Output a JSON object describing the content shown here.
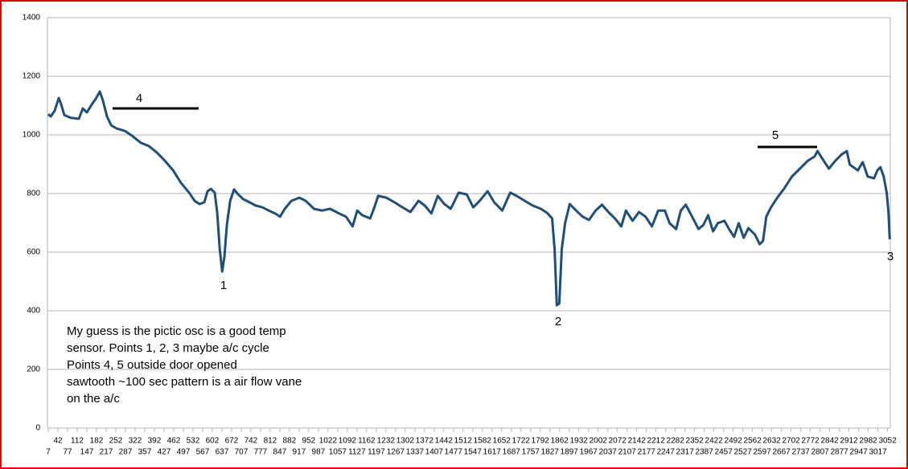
{
  "chart_data": {
    "type": "line",
    "color": "#1f4e79",
    "grid": true,
    "ylim": [
      0,
      1400
    ],
    "yticks": [
      0,
      200,
      400,
      600,
      800,
      1000,
      1200,
      1400
    ],
    "xlim": [
      4,
      3062
    ],
    "xticks": [
      7,
      42,
      77,
      112,
      147,
      182,
      217,
      252,
      287,
      322,
      357,
      392,
      427,
      462,
      497,
      532,
      567,
      602,
      637,
      672,
      707,
      742,
      777,
      812,
      847,
      882,
      917,
      952,
      987,
      1022,
      1057,
      1092,
      1127,
      1162,
      1197,
      1232,
      1267,
      1302,
      1337,
      1372,
      1407,
      1442,
      1477,
      1512,
      1547,
      1582,
      1617,
      1652,
      1687,
      1722,
      1757,
      1792,
      1827,
      1862,
      1897,
      1932,
      1967,
      2002,
      2037,
      2072,
      2107,
      2142,
      2177,
      2212,
      2247,
      2282,
      2317,
      2352,
      2387,
      2422,
      2457,
      2492,
      2527,
      2562,
      2597,
      2632,
      2667,
      2702,
      2737,
      2772,
      2807,
      2842,
      2877,
      2912,
      2947,
      2982,
      3017,
      3052
    ],
    "x": [
      7,
      16,
      30,
      45,
      54,
      65,
      89,
      118,
      132,
      147,
      165,
      179,
      194,
      205,
      220,
      235,
      255,
      284,
      314,
      343,
      372,
      401,
      430,
      460,
      489,
      518,
      538,
      556,
      573,
      585,
      597,
      611,
      620,
      629,
      638,
      646,
      655,
      667,
      681,
      696,
      714,
      737,
      760,
      784,
      807,
      830,
      848,
      865,
      889,
      918,
      941,
      971,
      1000,
      1029,
      1058,
      1087,
      1111,
      1128,
      1146,
      1175,
      1190,
      1204,
      1233,
      1263,
      1292,
      1321,
      1350,
      1373,
      1397,
      1420,
      1444,
      1467,
      1496,
      1525,
      1549,
      1572,
      1601,
      1625,
      1654,
      1683,
      1706,
      1736,
      1765,
      1794,
      1817,
      1835,
      1844,
      1852,
      1861,
      1870,
      1882,
      1899,
      1922,
      1946,
      1969,
      1993,
      2016,
      2039,
      2063,
      2086,
      2103,
      2127,
      2150,
      2174,
      2197,
      2220,
      2244,
      2261,
      2285,
      2302,
      2320,
      2343,
      2366,
      2384,
      2401,
      2419,
      2436,
      2460,
      2477,
      2495,
      2512,
      2530,
      2547,
      2571,
      2588,
      2600,
      2612,
      2629,
      2652,
      2676,
      2705,
      2734,
      2763,
      2787,
      2798,
      2816,
      2839,
      2863,
      2886,
      2904,
      2915,
      2944,
      2962,
      2980,
      3003,
      3015,
      3026,
      3038,
      3049,
      3055,
      3060
    ],
    "values": [
      1071,
      1063,
      1082,
      1126,
      1104,
      1068,
      1058,
      1055,
      1090,
      1077,
      1104,
      1123,
      1148,
      1118,
      1063,
      1033,
      1022,
      1014,
      995,
      973,
      962,
      940,
      912,
      879,
      836,
      803,
      775,
      764,
      770,
      808,
      816,
      803,
      734,
      611,
      534,
      584,
      693,
      775,
      814,
      797,
      781,
      770,
      759,
      753,
      742,
      732,
      721,
      748,
      775,
      786,
      775,
      748,
      742,
      748,
      734,
      721,
      688,
      742,
      726,
      715,
      753,
      792,
      786,
      770,
      753,
      737,
      775,
      759,
      732,
      792,
      764,
      748,
      803,
      797,
      753,
      775,
      808,
      770,
      742,
      803,
      792,
      775,
      759,
      748,
      734,
      715,
      611,
      419,
      425,
      611,
      699,
      764,
      742,
      721,
      710,
      742,
      762,
      737,
      715,
      688,
      742,
      707,
      737,
      721,
      688,
      742,
      742,
      699,
      679,
      742,
      762,
      721,
      679,
      693,
      726,
      671,
      699,
      707,
      679,
      652,
      699,
      649,
      682,
      660,
      627,
      638,
      721,
      753,
      786,
      816,
      858,
      885,
      912,
      926,
      945,
      918,
      885,
      912,
      934,
      945,
      899,
      879,
      907,
      858,
      852,
      879,
      890,
      858,
      803,
      742,
      644
    ],
    "annotations": [
      "4",
      "5",
      "1",
      "2",
      "3"
    ],
    "note": [
      "My guess is the pictic osc is a good temp",
      "sensor. Points 1, 2, 3 maybe a/c cycle",
      "Points 4, 5 outside door opened",
      "sawtooth ~100 sec pattern is a air flow vane",
      "on the a/c"
    ]
  }
}
